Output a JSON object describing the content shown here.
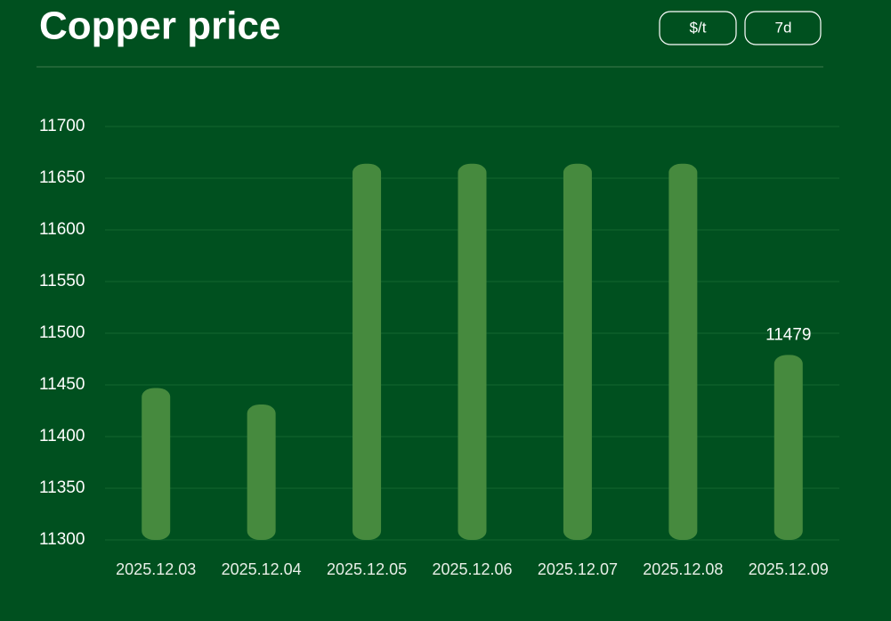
{
  "controls": [
    "$/t",
    "7d"
  ],
  "chart_data": {
    "type": "bar",
    "title": "Copper price",
    "categories": [
      "2025.12.03",
      "2025.12.04",
      "2025.12.05",
      "2025.12.06",
      "2025.12.07",
      "2025.12.08",
      "2025.12.09"
    ],
    "values": [
      11447,
      11431,
      11664,
      11664,
      11664,
      11664,
      11479
    ],
    "color": "#468a3e",
    "ylim": [
      11300,
      11700
    ],
    "yticks": [
      11300,
      11350,
      11400,
      11450,
      11500,
      11550,
      11600,
      11650,
      11700
    ],
    "grid": true
  }
}
